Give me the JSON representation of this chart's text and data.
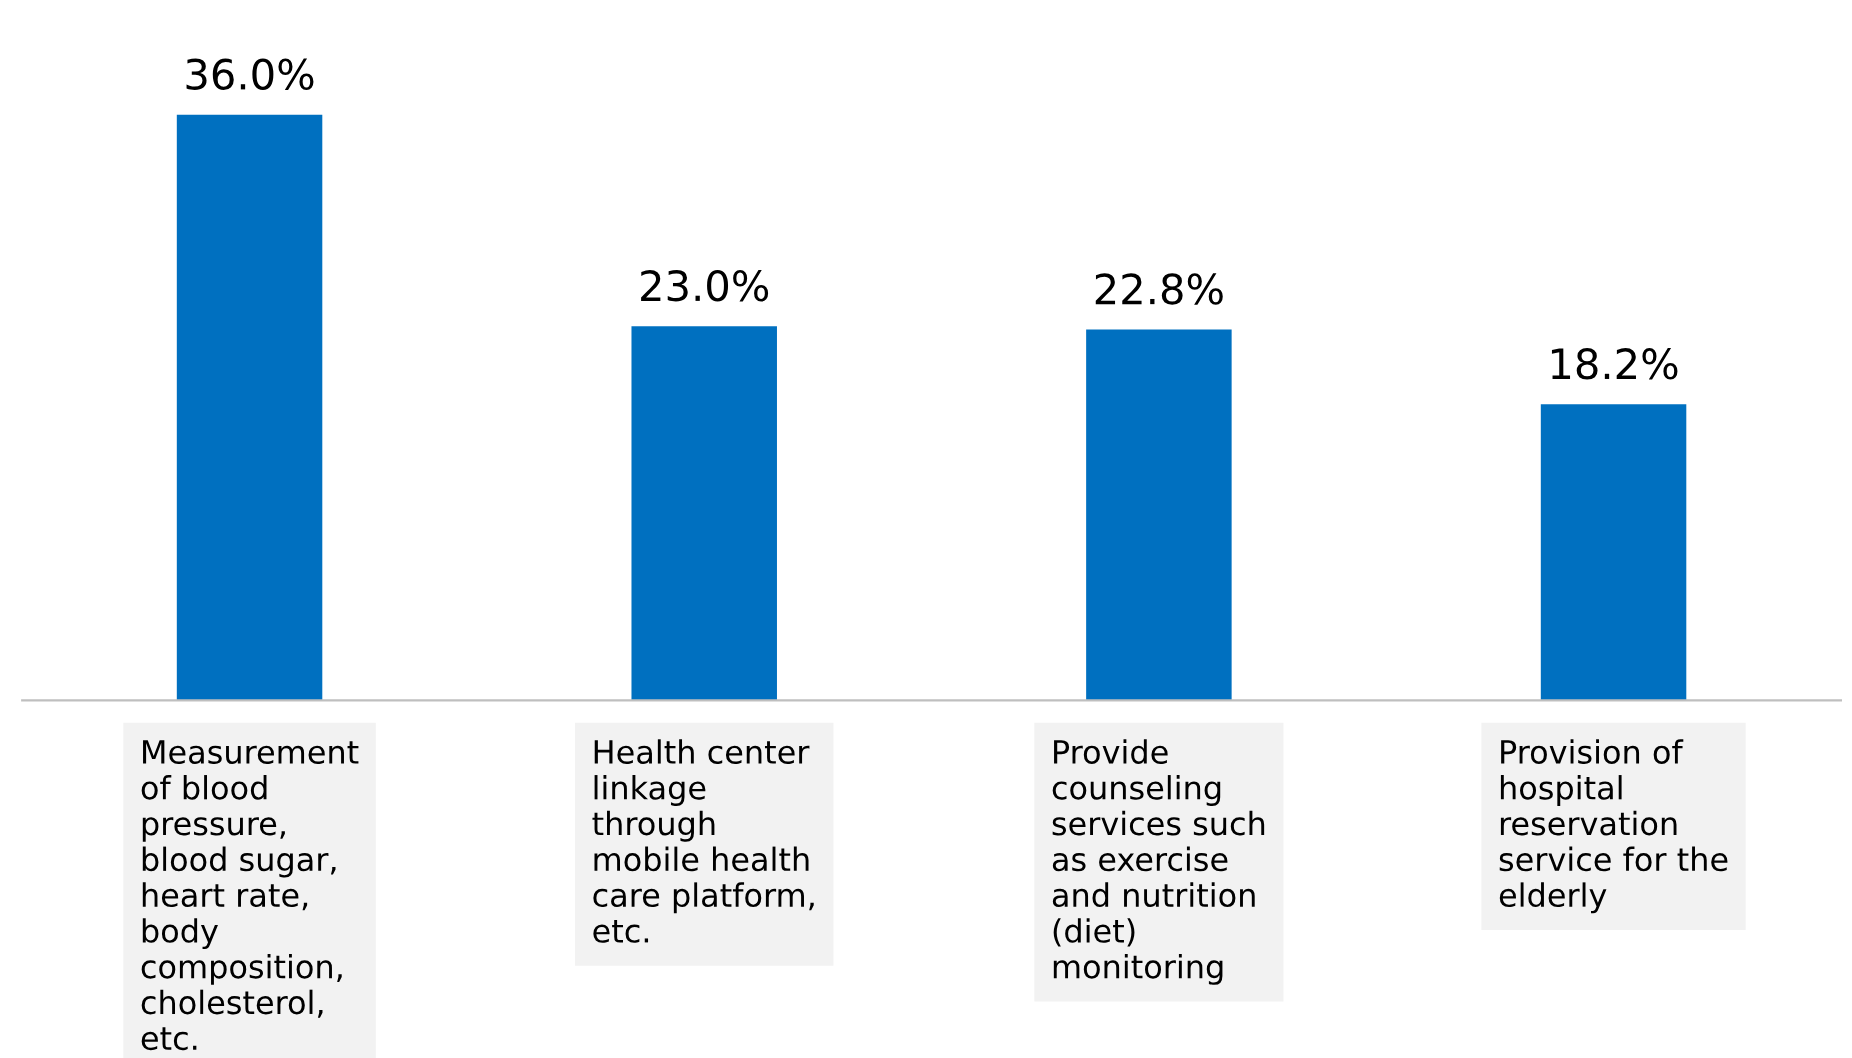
{
  "chart_data": {
    "type": "bar",
    "categories": [
      "Measurement\nof blood\npressure,\nblood sugar,\nheart rate,\nbody\ncomposition,\ncholesterol,\netc.",
      "Health center\nlinkage\nthrough\nmobile health\ncare platform,\netc.",
      "Provide\ncounseling\nservices such\nas exercise\nand nutrition\n(diet)\nmonitoring",
      "Provision of\nhospital\nreservation\nservice for the\nelderly"
    ],
    "values": [
      36.0,
      23.0,
      22.8,
      18.2
    ],
    "value_labels": [
      "36.0%",
      "23.0%",
      "22.8%",
      "18.2%"
    ],
    "color": "#0070c0",
    "grid": false,
    "legend": false
  }
}
